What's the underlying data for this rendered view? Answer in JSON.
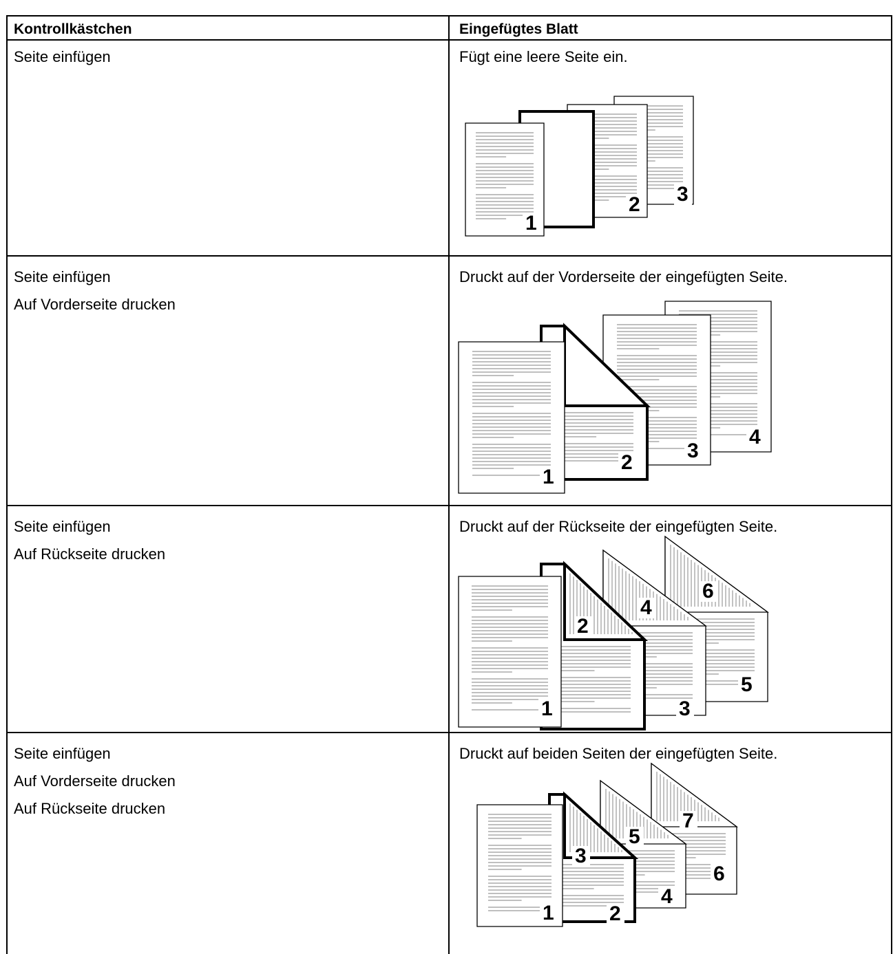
{
  "table": {
    "headers": [
      "Kontrollkästchen",
      "Eingefügtes Blatt"
    ],
    "rows": [
      {
        "checkboxes": [
          "Seite einfügen"
        ],
        "description": "Fügt eine leere Seite ein.",
        "figure_labels": [
          "1",
          "2",
          "3"
        ]
      },
      {
        "checkboxes": [
          "Seite einfügen",
          "Auf Vorderseite drucken"
        ],
        "description": "Druckt auf der Vorderseite der eingefügten Seite.",
        "figure_labels": [
          "1",
          "2",
          "3",
          "4"
        ]
      },
      {
        "checkboxes": [
          "Seite einfügen",
          "Auf Rückseite drucken"
        ],
        "description": "Druckt auf der Rückseite der eingefügten Seite.",
        "figure_labels": [
          "1",
          "2",
          "3",
          "4",
          "5",
          "6"
        ]
      },
      {
        "checkboxes": [
          "Seite einfügen",
          "Auf Vorderseite drucken",
          "Auf Rückseite drucken"
        ],
        "description": "Druckt auf beiden Seiten der eingefügten Seite.",
        "figure_labels": [
          "1",
          "2",
          "3",
          "4",
          "5",
          "6",
          "7"
        ]
      }
    ]
  }
}
